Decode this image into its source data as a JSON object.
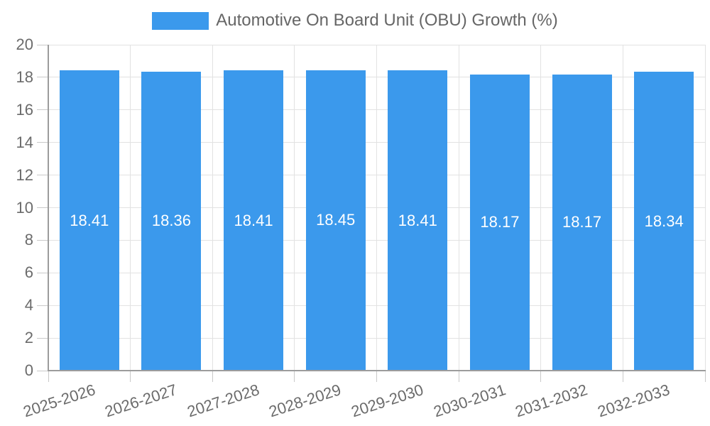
{
  "chart_data": {
    "type": "bar",
    "title": "Automotive On Board Unit (OBU) Growth (%)",
    "legend": {
      "label": "Automotive On Board Unit (OBU) Growth (%)",
      "position": "top"
    },
    "categories": [
      "2025-2026",
      "2026-2027",
      "2027-2028",
      "2028-2029",
      "2029-2030",
      "2030-2031",
      "2031-2032",
      "2032-2033"
    ],
    "values": [
      18.41,
      18.36,
      18.41,
      18.45,
      18.41,
      18.17,
      18.17,
      18.34
    ],
    "value_label_decimals": 2,
    "xlabel": "",
    "ylabel": "",
    "ylim": [
      0,
      20
    ],
    "yticks": [
      0,
      2,
      4,
      6,
      8,
      10,
      12,
      14,
      16,
      18,
      20
    ],
    "grid": true,
    "colors": {
      "bar": "#3b99ec",
      "grid_line": "#e2e2e2",
      "axis_line": "#9c9c9c",
      "tick_mark": "#c9c9c9",
      "tick_text": "#6b6b6b",
      "legend_text": "#666666",
      "value_text": "#ffffff"
    }
  }
}
